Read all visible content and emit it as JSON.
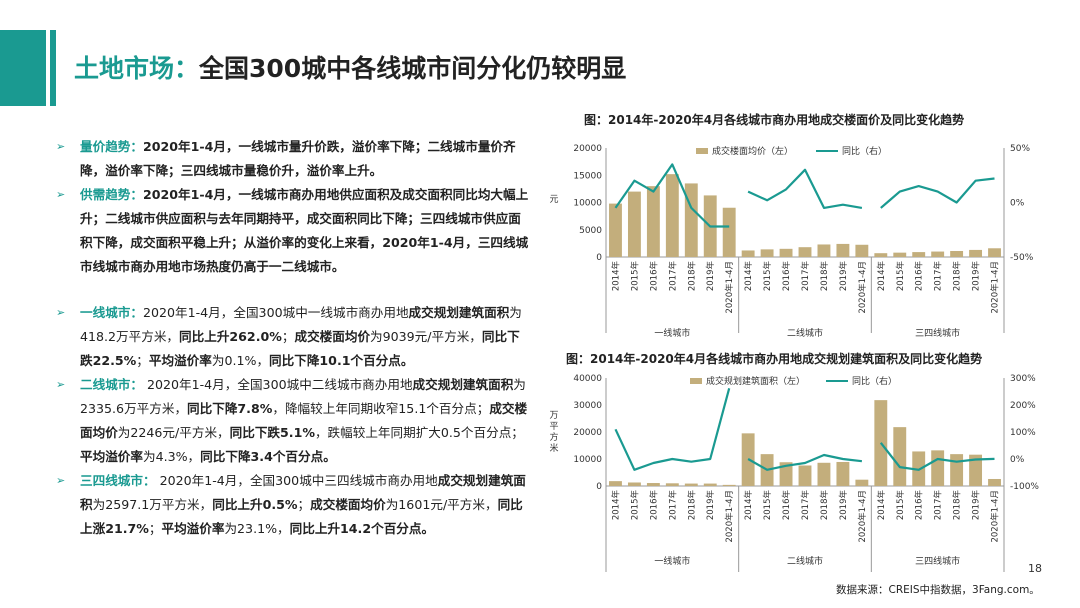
{
  "title": {
    "prefix": "土地市场：",
    "main": "全国300城中各线城市间分化仍较明显"
  },
  "bullets": [
    {
      "kw": "量价趋势：",
      "parts": [
        {
          "t": "2020年1-4月，一线城市量升价跌，溢价率下降；二线城市量价齐降，溢价率下降；三四线城市量稳价升，溢价率上升。",
          "b": true
        }
      ]
    },
    {
      "kw": "供需趋势：",
      "parts": [
        {
          "t": "2020年1-4月，一线城市商办用地供应面积及成交面积同比均大幅上升；二线城市供应面积与去年同期持平，成交面积同比下降；三四线城市供应面积下降，成交面积平稳上升；从溢价率的变化上来看，2020年1-4月，三四线城市线城市商办用地市场热度仍高于一二线城市。",
          "b": true
        }
      ]
    },
    {
      "gap": true
    },
    {
      "kw": "一线城市：",
      "parts": [
        {
          "t": "2020年1-4月，全国300城中一线城市商办用地",
          "b": false
        },
        {
          "t": "成交规划建筑面积",
          "b": true
        },
        {
          "t": "为418.2万平方米，",
          "b": false
        },
        {
          "t": "同比上升262.0%",
          "b": true
        },
        {
          "t": "；",
          "b": false
        },
        {
          "t": "成交楼面均价",
          "b": true
        },
        {
          "t": "为9039元/平方米，",
          "b": false
        },
        {
          "t": "同比下跌22.5%",
          "b": true
        },
        {
          "t": "；",
          "b": false
        },
        {
          "t": "平均溢价率",
          "b": true
        },
        {
          "t": "为0.1%，",
          "b": false
        },
        {
          "t": "同比下降10.1个百分点。",
          "b": true
        }
      ]
    },
    {
      "kw": "二线城市：",
      "parts": [
        {
          "t": " 2020年1-4月，全国300城中二线城市商办用地",
          "b": false
        },
        {
          "t": "成交规划建筑面积",
          "b": true
        },
        {
          "t": "为2335.6万平方米，",
          "b": false
        },
        {
          "t": "同比下降7.8%",
          "b": true
        },
        {
          "t": "，降幅较上年同期收窄15.1个百分点；",
          "b": false
        },
        {
          "t": "成交楼面均价",
          "b": true
        },
        {
          "t": "为2246元/平方米，",
          "b": false
        },
        {
          "t": "同比下跌5.1%",
          "b": true
        },
        {
          "t": "，跌幅较上年同期扩大0.5个百分点；",
          "b": false
        },
        {
          "t": "平均溢价率",
          "b": true
        },
        {
          "t": "为4.3%，",
          "b": false
        },
        {
          "t": "同比下降3.4个百分点。",
          "b": true
        }
      ]
    },
    {
      "kw": "三四线城市：",
      "parts": [
        {
          "t": " 2020年1-4月，全国300城中三四线城市商办用地",
          "b": false
        },
        {
          "t": "成交规划建筑面积",
          "b": true
        },
        {
          "t": "为2597.1万平方米，",
          "b": false
        },
        {
          "t": "同比上升0.5%",
          "b": true
        },
        {
          "t": "；",
          "b": false
        },
        {
          "t": "成交楼面均价",
          "b": true
        },
        {
          "t": "为1601元/平方米，",
          "b": false
        },
        {
          "t": "同比上涨21.7%",
          "b": true
        },
        {
          "t": "；",
          "b": false
        },
        {
          "t": "平均溢价率",
          "b": true
        },
        {
          "t": "为23.1%，",
          "b": false
        },
        {
          "t": "同比上升14.2个百分点。",
          "b": true
        }
      ]
    }
  ],
  "chart_data": [
    {
      "type": "bar",
      "title": "图：2014年-2020年4月各线城市商办用地成交楼面价及同比变化趋势",
      "ylabel": "元",
      "ylim": [
        0,
        20000
      ],
      "yticks": [
        "0",
        "5000",
        "10000",
        "15000",
        "20000"
      ],
      "y2lim": [
        -50,
        50
      ],
      "y2ticks": [
        "-50%",
        "0%",
        "50%"
      ],
      "legend": [
        "成交楼面均价（左）",
        "同比（右）"
      ],
      "groups": [
        "一线城市",
        "二线城市",
        "三四线城市"
      ],
      "categories": [
        "2014年",
        "2015年",
        "2016年",
        "2017年",
        "2018年",
        "2019年",
        "2020年1-4月"
      ],
      "series": [
        {
          "name": "成交楼面均价（左）",
          "kind": "bar",
          "values": [
            [
              9800,
              12000,
              13000,
              15200,
              13500,
              11300,
              9039
            ],
            [
              1200,
              1400,
              1500,
              1800,
              2300,
              2400,
              2246
            ],
            [
              700,
              800,
              900,
              1000,
              1100,
              1300,
              1601
            ]
          ]
        },
        {
          "name": "同比（右）",
          "kind": "line",
          "values": [
            [
              -5,
              20,
              10,
              35,
              -5,
              -22,
              -22
            ],
            [
              10,
              2,
              12,
              30,
              -5,
              -2,
              -5
            ],
            [
              -5,
              10,
              15,
              10,
              0,
              20,
              22
            ]
          ]
        }
      ]
    },
    {
      "type": "bar",
      "title": "图：2014年-2020年4月各线城市商办用地成交规划建筑面积及同比变化趋势",
      "ylabel": "万平方米",
      "ylim": [
        0,
        40000
      ],
      "yticks": [
        "0",
        "10000",
        "20000",
        "30000",
        "40000"
      ],
      "y2lim": [
        -100,
        300
      ],
      "y2ticks": [
        "-100%",
        "0%",
        "100%",
        "200%",
        "300%"
      ],
      "legend": [
        "成交规划建筑面积（左）",
        "同比（右）"
      ],
      "groups": [
        "一线城市",
        "二线城市",
        "三四线城市"
      ],
      "categories": [
        "2014年",
        "2015年",
        "2016年",
        "2017年",
        "2018年",
        "2019年",
        "2020年1-4月"
      ],
      "series": [
        {
          "name": "成交规划建筑面积（左）",
          "kind": "bar",
          "values": [
            [
              1800,
              1300,
              1100,
              1000,
              900,
              900,
              418.2
            ],
            [
              19500,
              11800,
              8800,
              7600,
              8600,
              8900,
              2335.6
            ],
            [
              31800,
              21800,
              12800,
              13200,
              11800,
              11600,
              2597.1
            ]
          ]
        },
        {
          "name": "同比（右）",
          "kind": "line",
          "values": [
            [
              110,
              -40,
              -15,
              0,
              -10,
              0,
              262
            ],
            [
              0,
              -40,
              -25,
              -15,
              15,
              0,
              -8
            ],
            [
              60,
              -30,
              -40,
              0,
              -10,
              -2,
              0.5
            ]
          ]
        }
      ]
    }
  ],
  "colors": {
    "accent": "#1a9a91",
    "bar": "#c3ae7c",
    "line": "#1a9a91"
  },
  "page_number": "18",
  "source": "数据来源：CREIS中指数据，3Fang.com。"
}
